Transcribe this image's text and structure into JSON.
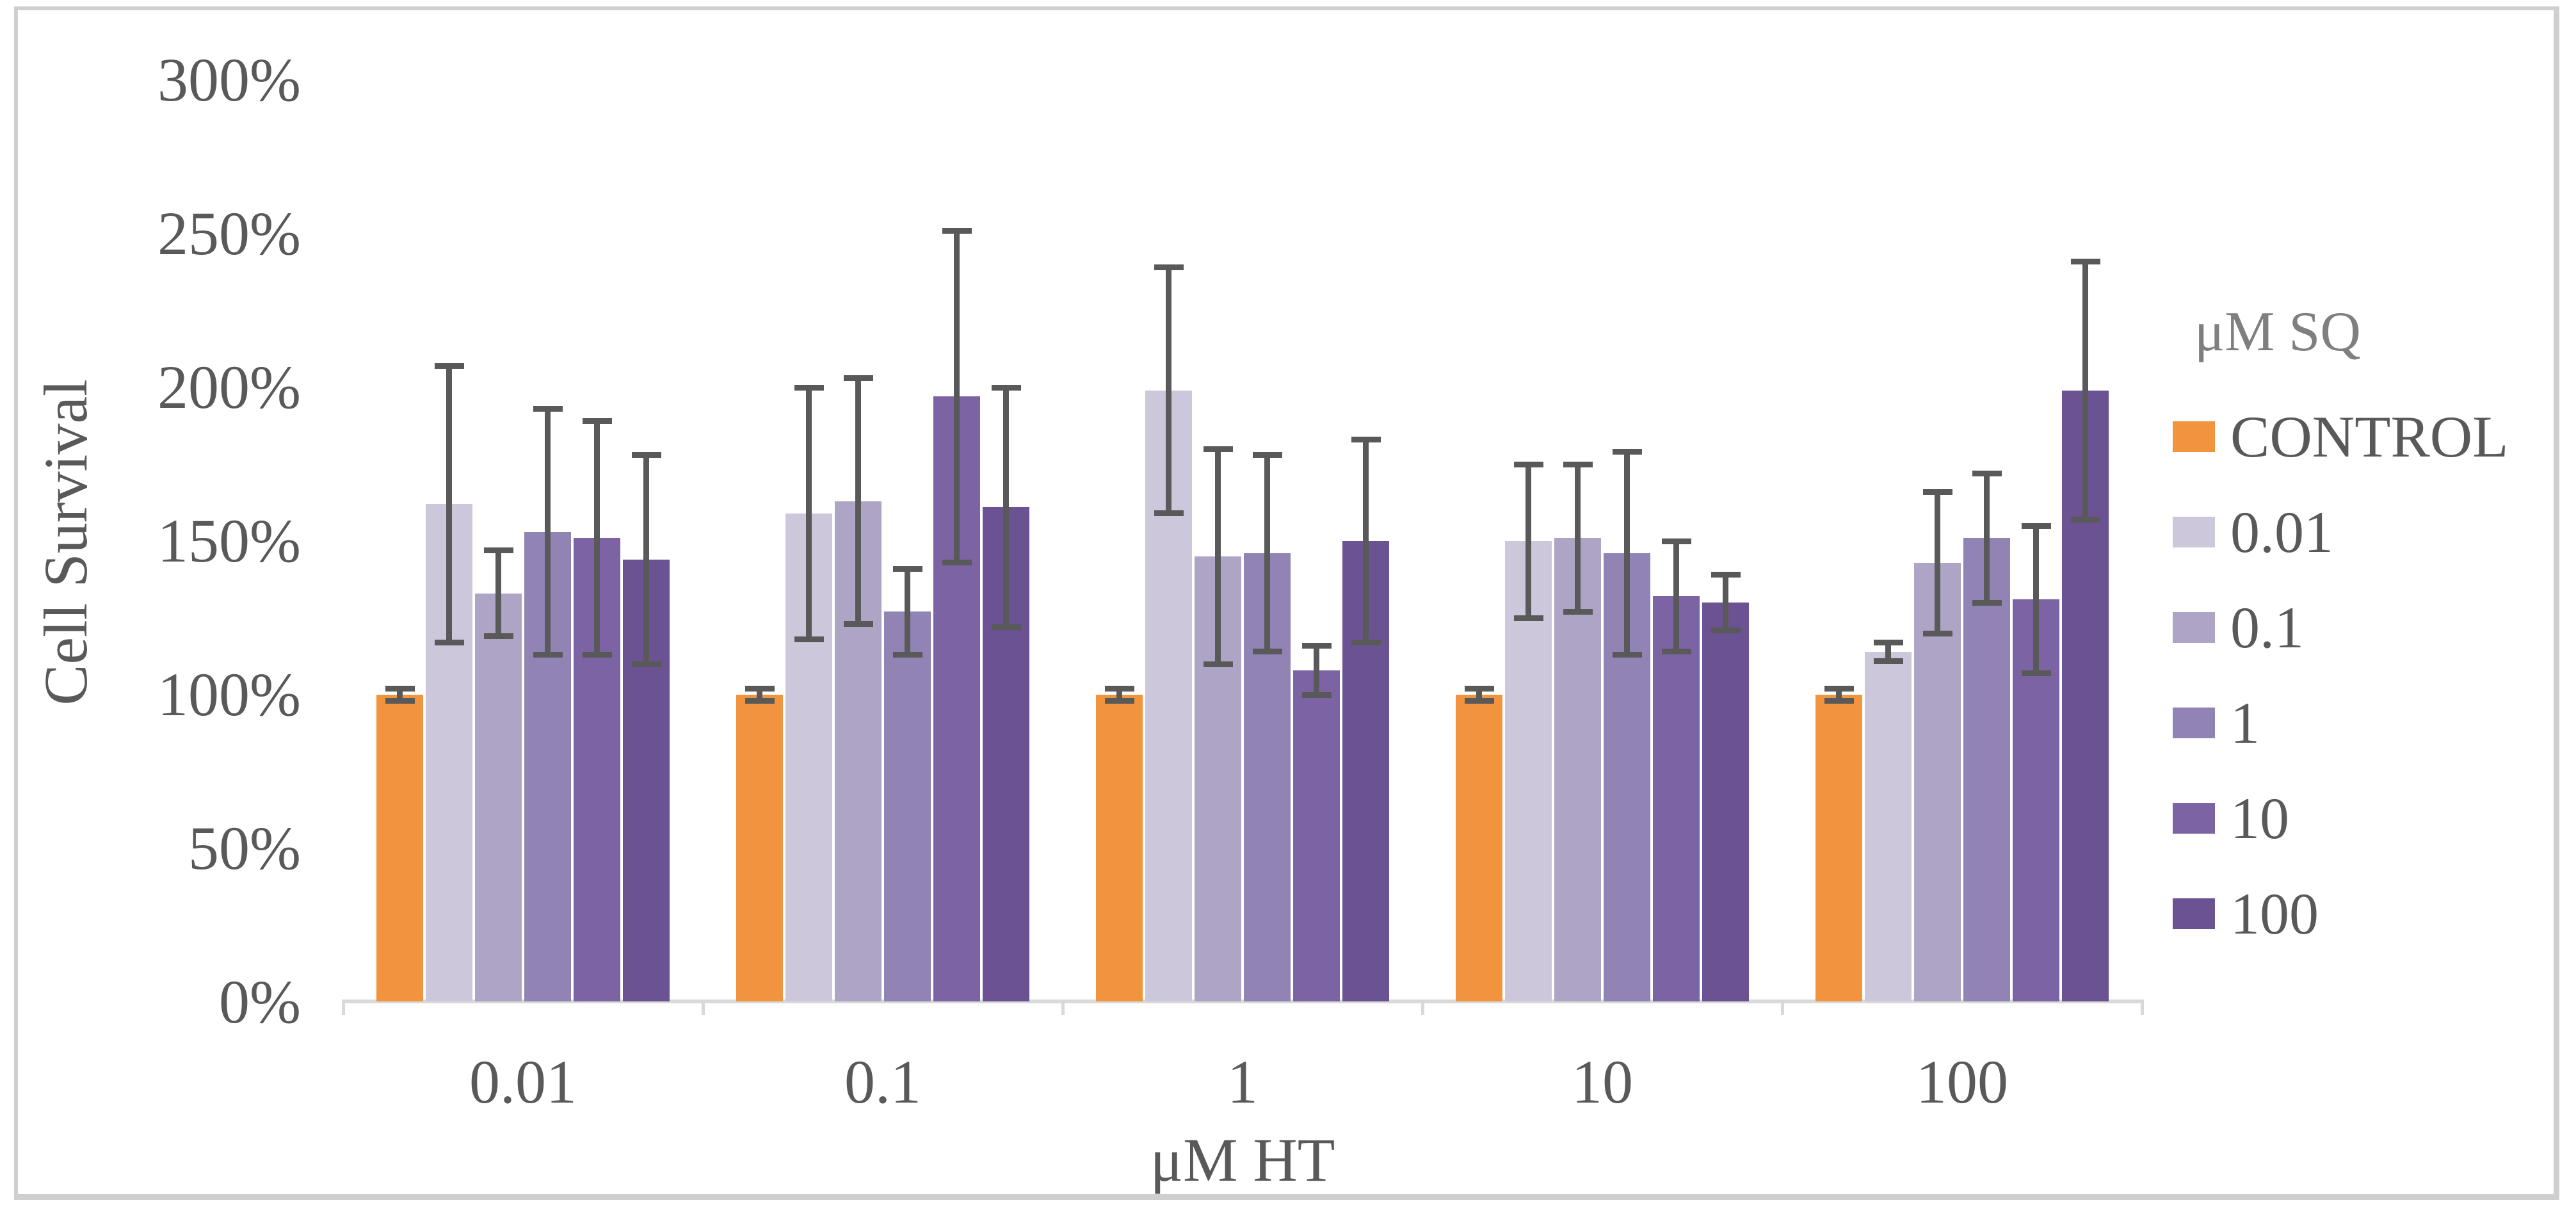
{
  "chart_data": {
    "type": "bar",
    "title": "",
    "ylabel": "Cell Survival",
    "xlabel": "μM HT",
    "legend_title": "μM SQ",
    "legend_position": "right",
    "grid": false,
    "categories": [
      "0.01",
      "0.1",
      "1",
      "10",
      "100"
    ],
    "series": [
      {
        "name": "CONTROL",
        "color": "#f2943e",
        "values": [
          100,
          100,
          100,
          100,
          100
        ],
        "errors": [
          2,
          2,
          2,
          2,
          2
        ]
      },
      {
        "name": "0.01",
        "color": "#cdc7db",
        "values": [
          162,
          159,
          199,
          150,
          114
        ],
        "errors": [
          45,
          41,
          40,
          25,
          3
        ]
      },
      {
        "name": "0.1",
        "color": "#aea4c6",
        "values": [
          133,
          163,
          145,
          151,
          143
        ],
        "errors": [
          14,
          40,
          35,
          24,
          23
        ]
      },
      {
        "name": "1",
        "color": "#9183b4",
        "values": [
          153,
          127,
          146,
          146,
          151
        ],
        "errors": [
          40,
          14,
          32,
          33,
          21
        ]
      },
      {
        "name": "10",
        "color": "#7c64a4",
        "values": [
          151,
          197,
          108,
          132,
          131
        ],
        "errors": [
          38,
          54,
          8,
          18,
          24
        ]
      },
      {
        "name": "100",
        "color": "#6b5293",
        "values": [
          144,
          161,
          150,
          130,
          199
        ],
        "errors": [
          34,
          39,
          33,
          9,
          42
        ]
      }
    ],
    "ylim": [
      0,
      300
    ],
    "yticks": [
      {
        "value": 0,
        "label": "0%"
      },
      {
        "value": 50,
        "label": "50%"
      },
      {
        "value": 100,
        "label": "100%"
      },
      {
        "value": 150,
        "label": "150%"
      },
      {
        "value": 200,
        "label": "200%"
      },
      {
        "value": 250,
        "label": "250%"
      },
      {
        "value": 300,
        "label": "300%"
      }
    ],
    "error_bar_color": "#595959",
    "axis_line_color": "#d9d9d9",
    "tick_label_color": "#595959"
  }
}
